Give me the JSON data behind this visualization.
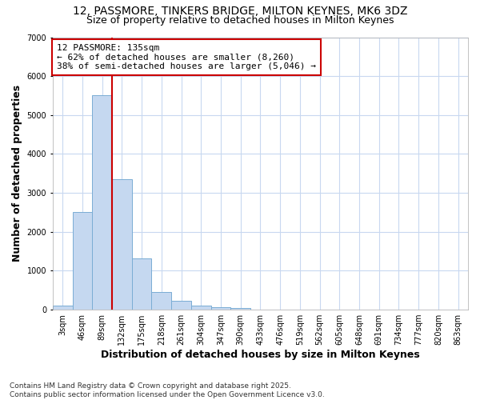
{
  "title_line1": "12, PASSMORE, TINKERS BRIDGE, MILTON KEYNES, MK6 3DZ",
  "title_line2": "Size of property relative to detached houses in Milton Keynes",
  "xlabel": "Distribution of detached houses by size in Milton Keynes",
  "ylabel": "Number of detached properties",
  "categories": [
    "3sqm",
    "46sqm",
    "89sqm",
    "132sqm",
    "175sqm",
    "218sqm",
    "261sqm",
    "304sqm",
    "347sqm",
    "390sqm",
    "433sqm",
    "476sqm",
    "519sqm",
    "562sqm",
    "605sqm",
    "648sqm",
    "691sqm",
    "734sqm",
    "777sqm",
    "820sqm",
    "863sqm"
  ],
  "values": [
    100,
    2500,
    5500,
    3350,
    1320,
    450,
    230,
    100,
    70,
    50,
    0,
    0,
    0,
    0,
    0,
    0,
    0,
    0,
    0,
    0,
    0
  ],
  "bar_color": "#c5d8f0",
  "bar_edge_color": "#7aadd4",
  "vline_color": "#cc0000",
  "property_label": "12 PASSMORE: 135sqm",
  "annotation_line2": "← 62% of detached houses are smaller (8,260)",
  "annotation_line3": "38% of semi-detached houses are larger (5,046) →",
  "annotation_box_edgecolor": "#cc0000",
  "annotation_bg": "white",
  "ylim": [
    0,
    7000
  ],
  "yticks": [
    0,
    1000,
    2000,
    3000,
    4000,
    5000,
    6000,
    7000
  ],
  "fig_bg_color": "#ffffff",
  "plot_bg_color": "#ffffff",
  "grid_color": "#c8d8f0",
  "title_fontsize": 10,
  "subtitle_fontsize": 9,
  "axis_label_fontsize": 9,
  "tick_fontsize": 7,
  "annot_fontsize": 8,
  "footer_fontsize": 6.5
}
